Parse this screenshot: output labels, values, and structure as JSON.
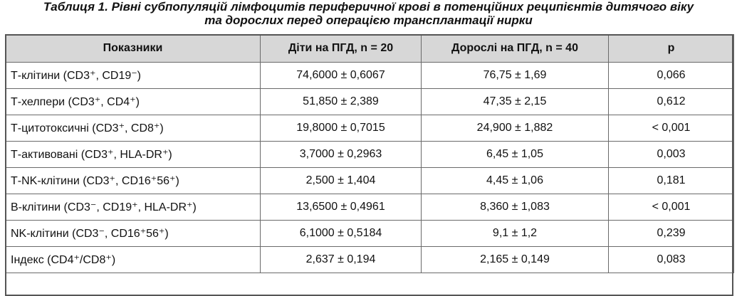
{
  "caption": {
    "line1": "Таблиця 1. Рівні субпопуляцій лімфоцитів периферичної крові в потенційних реципієнтів дитячого віку",
    "line2": "та дорослих перед операцією трансплантації нирки"
  },
  "table": {
    "headers": [
      "Показники",
      "Діти на ПГД, n = 20",
      "Дорослі на ПГД, n = 40",
      "p"
    ],
    "rows": [
      [
        "Т-клітини (CD3⁺, CD19⁻)",
        "74,6000 ± 0,6067",
        "76,75 ± 1,69",
        "0,066"
      ],
      [
        "Т-хелпери (CD3⁺, CD4⁺)",
        "51,850 ± 2,389",
        "47,35 ± 2,15",
        "0,612"
      ],
      [
        "Т-цитотоксичні (CD3⁺, CD8⁺)",
        "19,8000 ± 0,7015",
        "24,900 ± 1,882",
        "< 0,001"
      ],
      [
        "Т-активовані (CD3⁺, HLA-DR⁺)",
        "3,7000 ± 0,2963",
        "6,45 ± 1,05",
        "0,003"
      ],
      [
        "Т-NK-клітини (CD3⁺, CD16⁺56⁺)",
        "2,500 ± 1,404",
        "4,45 ± 1,06",
        "0,181"
      ],
      [
        "В-клітини (CD3⁻, CD19⁺, HLA-DR⁺)",
        "13,6500 ± 0,4961",
        "8,360 ± 1,083",
        "< 0,001"
      ],
      [
        "NK-клітини (CD3⁻, CD16⁺56⁺)",
        "6,1000 ± 0,5184",
        "9,1 ± 1,2",
        "0,239"
      ],
      [
        "Індекс (CD4⁺/CD8⁺)",
        "2,637 ± 0,194",
        "2,165 ± 0,149",
        "0,083"
      ]
    ]
  }
}
